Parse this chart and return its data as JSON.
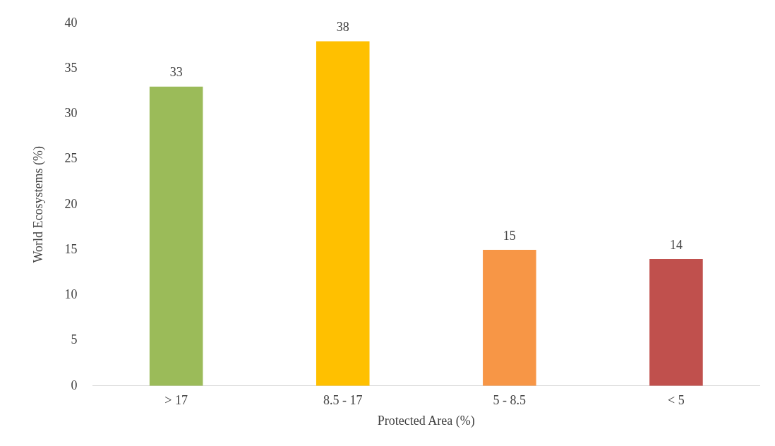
{
  "chart_data": {
    "type": "bar",
    "xlabel": "Protected Area (%)",
    "ylabel": "World Ecosystems (%)",
    "categories": [
      "> 17",
      "8.5 - 17",
      "5 - 8.5",
      "< 5"
    ],
    "values": [
      33,
      38,
      15,
      14
    ],
    "colors": [
      "#9bbb59",
      "#ffc000",
      "#f79646",
      "#c0504d"
    ],
    "ylim": [
      0,
      40
    ],
    "yticks": [
      0,
      5,
      10,
      15,
      20,
      25,
      30,
      35,
      40
    ],
    "grid": false,
    "legend": false,
    "data_labels": true
  }
}
